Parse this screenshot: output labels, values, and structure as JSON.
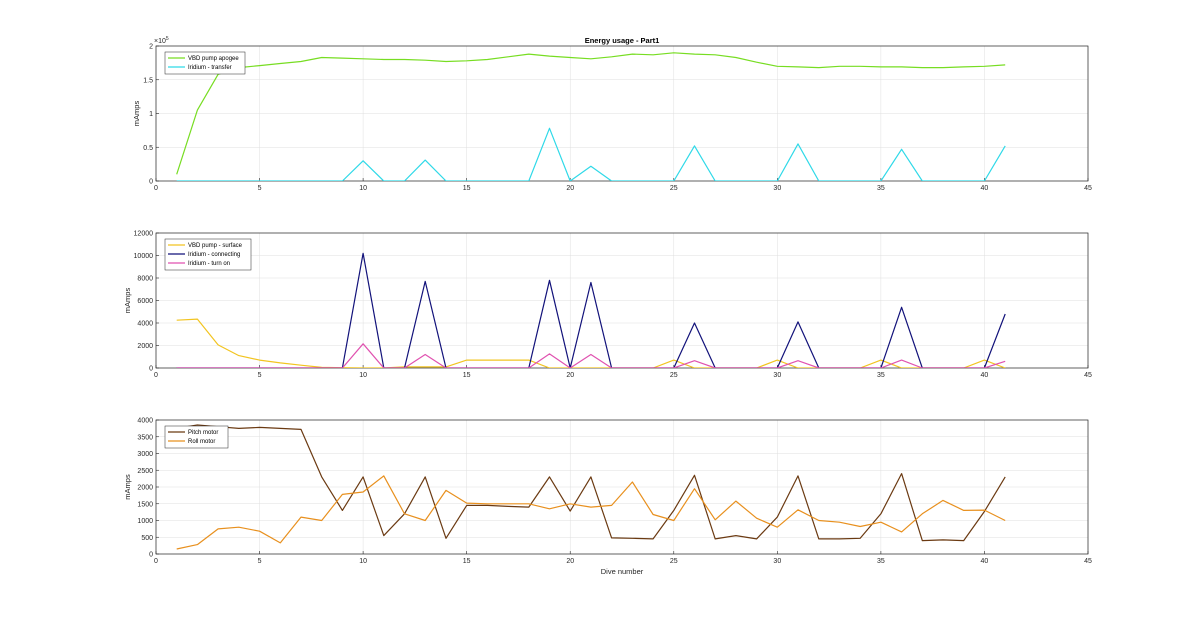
{
  "chart_data": [
    {
      "type": "line",
      "title": "Energy usage - Part1",
      "ylabel": "mAmps",
      "xlabel": "",
      "xlim": [
        0,
        45
      ],
      "ylim": [
        0,
        200000
      ],
      "xticks": [
        0,
        5,
        10,
        15,
        20,
        25,
        30,
        35,
        40,
        45
      ],
      "yticks": [
        0,
        50000,
        100000,
        150000,
        200000
      ],
      "ytick_labels": [
        "0",
        "0.5",
        "1",
        "1.5",
        "2"
      ],
      "exponent_label": "×10",
      "exponent_power": "5",
      "grid": true,
      "legend": "top-left",
      "series": [
        {
          "name": "VBD pump apogee",
          "color": "#77dd22",
          "x": [
            1,
            2,
            3,
            4,
            5,
            6,
            7,
            8,
            9,
            10,
            11,
            12,
            13,
            14,
            15,
            16,
            17,
            18,
            19,
            20,
            21,
            22,
            23,
            24,
            25,
            26,
            27,
            28,
            29,
            30,
            31,
            32,
            33,
            34,
            35,
            36,
            37,
            38,
            39,
            40,
            41
          ],
          "y": [
            10000,
            105000,
            158000,
            168000,
            171000,
            174000,
            177000,
            183000,
            182000,
            181000,
            180000,
            180000,
            179000,
            177000,
            178000,
            180000,
            184000,
            188000,
            185000,
            183000,
            181000,
            184000,
            188000,
            187000,
            190000,
            188000,
            187000,
            183000,
            176000,
            170000,
            169000,
            168000,
            170000,
            170000,
            169000,
            169000,
            168000,
            168000,
            169000,
            170000,
            172000
          ]
        },
        {
          "name": "Iridium - transfer",
          "color": "#2fd9e8",
          "x": [
            1,
            2,
            3,
            4,
            5,
            6,
            7,
            8,
            9,
            10,
            11,
            12,
            13,
            14,
            15,
            16,
            17,
            18,
            19,
            20,
            21,
            22,
            23,
            24,
            25,
            26,
            27,
            28,
            29,
            30,
            31,
            32,
            33,
            34,
            35,
            36,
            37,
            38,
            39,
            40,
            41
          ],
          "y": [
            0,
            0,
            0,
            0,
            0,
            0,
            0,
            0,
            0,
            30000,
            0,
            0,
            31000,
            0,
            0,
            0,
            0,
            0,
            78000,
            0,
            22000,
            0,
            0,
            0,
            0,
            52000,
            0,
            0,
            0,
            0,
            55000,
            0,
            0,
            0,
            0,
            47000,
            0,
            0,
            0,
            0,
            52000
          ]
        }
      ]
    },
    {
      "type": "line",
      "title": "",
      "ylabel": "mAmps",
      "xlabel": "",
      "xlim": [
        0,
        45
      ],
      "ylim": [
        0,
        12000
      ],
      "xticks": [
        0,
        5,
        10,
        15,
        20,
        25,
        30,
        35,
        40,
        45
      ],
      "yticks": [
        0,
        2000,
        4000,
        6000,
        8000,
        10000,
        12000
      ],
      "ytick_labels": [
        "0",
        "2000",
        "4000",
        "6000",
        "8000",
        "10000",
        "12000"
      ],
      "grid": true,
      "legend": "top-left",
      "series": [
        {
          "name": "VBD pump - surface",
          "color": "#f2c420",
          "x": [
            1,
            2,
            3,
            4,
            5,
            6,
            7,
            8,
            9,
            10,
            11,
            12,
            13,
            14,
            15,
            16,
            17,
            18,
            19,
            20,
            21,
            22,
            23,
            24,
            25,
            26,
            27,
            28,
            29,
            30,
            31,
            32,
            33,
            34,
            35,
            36,
            37,
            38,
            39,
            40,
            41
          ],
          "y": [
            4250,
            4350,
            2050,
            1100,
            700,
            450,
            250,
            50,
            30,
            0,
            0,
            100,
            100,
            100,
            700,
            700,
            700,
            700,
            0,
            0,
            0,
            0,
            0,
            0,
            700,
            0,
            0,
            0,
            0,
            700,
            0,
            0,
            0,
            0,
            700,
            0,
            0,
            0,
            0,
            700,
            0
          ]
        },
        {
          "name": "Iridium - connecting",
          "color": "#12127a",
          "x": [
            1,
            2,
            3,
            4,
            5,
            6,
            7,
            8,
            9,
            10,
            11,
            12,
            13,
            14,
            15,
            16,
            17,
            18,
            19,
            20,
            21,
            22,
            23,
            24,
            25,
            26,
            27,
            28,
            29,
            30,
            31,
            32,
            33,
            34,
            35,
            36,
            37,
            38,
            39,
            40,
            41
          ],
          "y": [
            0,
            0,
            0,
            0,
            0,
            0,
            0,
            0,
            0,
            10200,
            0,
            0,
            7700,
            0,
            0,
            0,
            0,
            0,
            7800,
            0,
            7600,
            0,
            0,
            0,
            0,
            4000,
            0,
            0,
            0,
            0,
            4100,
            0,
            0,
            0,
            0,
            5400,
            0,
            0,
            0,
            0,
            4800
          ]
        },
        {
          "name": "Iridium - turn on",
          "color": "#e052b0",
          "x": [
            1,
            2,
            3,
            4,
            5,
            6,
            7,
            8,
            9,
            10,
            11,
            12,
            13,
            14,
            15,
            16,
            17,
            18,
            19,
            20,
            21,
            22,
            23,
            24,
            25,
            26,
            27,
            28,
            29,
            30,
            31,
            32,
            33,
            34,
            35,
            36,
            37,
            38,
            39,
            40,
            41
          ],
          "y": [
            0,
            0,
            0,
            0,
            0,
            0,
            0,
            0,
            0,
            2150,
            0,
            0,
            1200,
            0,
            0,
            0,
            0,
            0,
            1250,
            0,
            1200,
            0,
            0,
            0,
            0,
            650,
            0,
            0,
            0,
            0,
            650,
            0,
            0,
            0,
            0,
            700,
            0,
            0,
            0,
            0,
            600
          ]
        }
      ]
    },
    {
      "type": "line",
      "title": "",
      "ylabel": "mAmps",
      "xlabel": "Dive number",
      "xlim": [
        0,
        45
      ],
      "ylim": [
        0,
        4000
      ],
      "xticks": [
        0,
        5,
        10,
        15,
        20,
        25,
        30,
        35,
        40,
        45
      ],
      "yticks": [
        0,
        500,
        1000,
        1500,
        2000,
        2500,
        3000,
        3500,
        4000
      ],
      "ytick_labels": [
        "0",
        "500",
        "1000",
        "1500",
        "2000",
        "2500",
        "3000",
        "3500",
        "4000"
      ],
      "grid": true,
      "legend": "top-left",
      "series": [
        {
          "name": "Pitch motor",
          "color": "#6b3a12",
          "x": [
            1,
            2,
            3,
            4,
            5,
            6,
            7,
            8,
            9,
            10,
            11,
            12,
            13,
            14,
            15,
            16,
            17,
            18,
            19,
            20,
            21,
            22,
            23,
            24,
            25,
            26,
            27,
            28,
            29,
            30,
            31,
            32,
            33,
            34,
            35,
            36,
            37,
            38,
            39,
            40,
            41
          ],
          "y": [
            3750,
            3850,
            3800,
            3750,
            3780,
            3750,
            3720,
            2300,
            1300,
            2300,
            550,
            1200,
            2300,
            470,
            1450,
            1450,
            1420,
            1400,
            2300,
            1280,
            2300,
            480,
            470,
            450,
            1300,
            2350,
            450,
            550,
            450,
            1100,
            2330,
            450,
            450,
            470,
            1200,
            2400,
            400,
            420,
            400,
            1270,
            2300
          ]
        },
        {
          "name": "Roll motor",
          "color": "#e8901e",
          "x": [
            1,
            2,
            3,
            4,
            5,
            6,
            7,
            8,
            9,
            10,
            11,
            12,
            13,
            14,
            15,
            16,
            17,
            18,
            19,
            20,
            21,
            22,
            23,
            24,
            25,
            26,
            27,
            28,
            29,
            30,
            31,
            32,
            33,
            34,
            35,
            36,
            37,
            38,
            39,
            40,
            41
          ],
          "y": [
            150,
            280,
            750,
            800,
            680,
            330,
            1100,
            1000,
            1780,
            1850,
            2330,
            1200,
            1000,
            1900,
            1520,
            1500,
            1500,
            1500,
            1350,
            1500,
            1400,
            1450,
            2150,
            1180,
            1000,
            1950,
            1020,
            1580,
            1070,
            800,
            1320,
            1000,
            950,
            820,
            950,
            660,
            1200,
            1600,
            1300,
            1310,
            1000
          ]
        }
      ]
    }
  ]
}
